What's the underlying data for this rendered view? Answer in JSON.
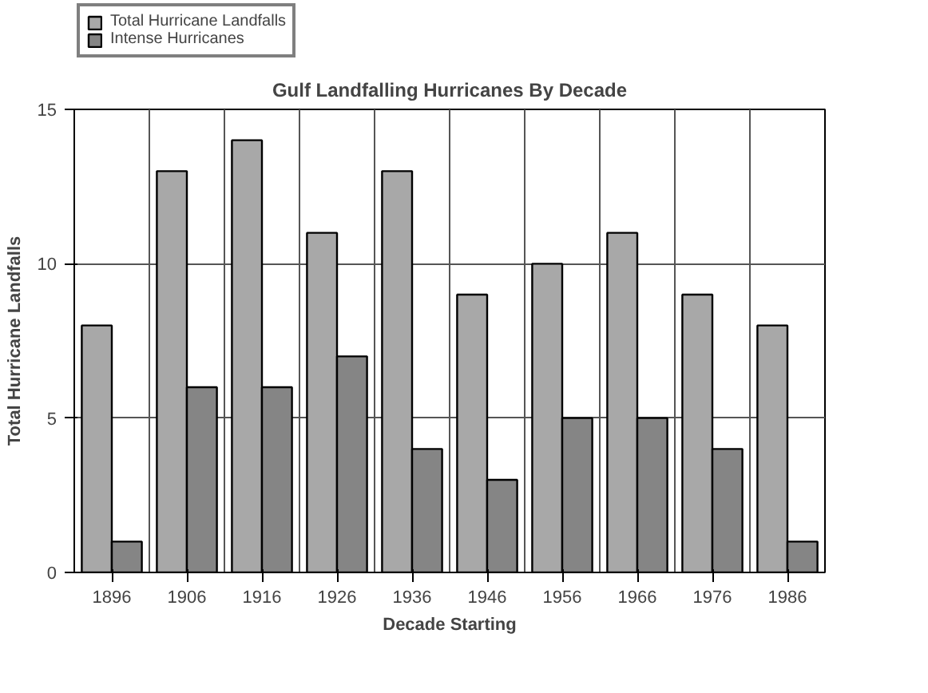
{
  "chart_data": {
    "type": "bar",
    "title": "Gulf Landfalling Hurricanes By Decade",
    "xlabel": "Decade Starting",
    "ylabel": "Total Hurricane Landfalls",
    "categories": [
      "1896",
      "1906",
      "1916",
      "1926",
      "1936",
      "1946",
      "1956",
      "1966",
      "1976",
      "1986"
    ],
    "series": [
      {
        "name": "Total Hurricane Landfalls",
        "color": "#a8a8a8",
        "values": [
          8,
          13,
          14,
          11,
          13,
          9,
          10,
          11,
          9,
          8
        ]
      },
      {
        "name": "Intense Hurricanes",
        "color": "#858585",
        "values": [
          1,
          6,
          6,
          7,
          4,
          3,
          5,
          5,
          4,
          1
        ]
      }
    ],
    "ylim": [
      0,
      15
    ],
    "yticks": [
      0,
      5,
      10,
      15
    ],
    "grid": true,
    "legend": "top left"
  }
}
